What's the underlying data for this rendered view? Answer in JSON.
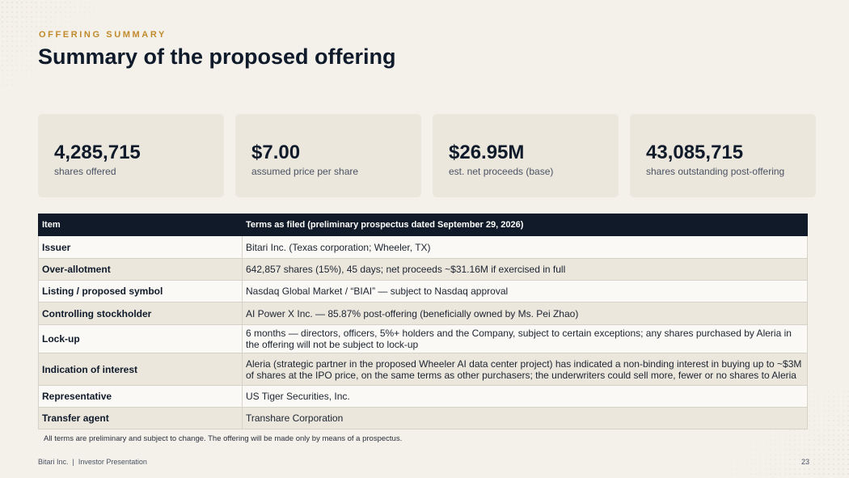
{
  "header": {
    "eyebrow": "OFFERING SUMMARY",
    "title": "Summary of the proposed offering"
  },
  "stats": [
    {
      "value": "4,285,715",
      "label": "shares offered"
    },
    {
      "value": "$7.00",
      "label": "assumed price per share"
    },
    {
      "value": "$26.95M",
      "label": "est. net proceeds (base)"
    },
    {
      "value": "43,085,715",
      "label": "shares outstanding post-offering"
    }
  ],
  "table": {
    "headers": [
      "Item",
      "Terms as filed (preliminary prospectus dated September 29, 2026)"
    ],
    "rows": [
      {
        "item": "Issuer",
        "terms": "Bitari Inc. (Texas corporation; Wheeler, TX)"
      },
      {
        "item": "Over-allotment",
        "terms": "642,857 shares (15%), 45 days; net proceeds ~$31.16M if exercised in full"
      },
      {
        "item": "Listing / proposed symbol",
        "terms": "Nasdaq Global Market / “BIAI” — subject to Nasdaq approval"
      },
      {
        "item": "Controlling stockholder",
        "terms": "AI Power X Inc. — 85.87% post-offering (beneficially owned by Ms. Pei Zhao)"
      },
      {
        "item": "Lock-up",
        "terms": "6 months — directors, officers, 5%+ holders and the Company, subject to certain exceptions; any shares purchased by Aleria in the offering will not be subject to lock-up"
      },
      {
        "item": "Indication of interest",
        "terms": "Aleria (strategic partner in the proposed Wheeler AI data center project) has indicated a non-binding interest in buying up to ~$3M of shares at the IPO price, on the same terms as other purchasers; the underwriters could sell more, fewer or no shares to Aleria"
      },
      {
        "item": "Representative",
        "terms": "US Tiger Securities, Inc."
      },
      {
        "item": "Transfer agent",
        "terms": "Transhare Corporation"
      }
    ]
  },
  "footnote": "All terms are preliminary and subject to change. The offering will be made only by means of a prospectus.",
  "footer": {
    "company": "Bitari Inc.",
    "separator": "|",
    "doc": "Investor Presentation",
    "page": "23"
  },
  "colors": {
    "background": "#f4f1eb",
    "accent": "#c08a2b",
    "header_fill": "#111a28",
    "card_fill": "#ebe7dd"
  }
}
